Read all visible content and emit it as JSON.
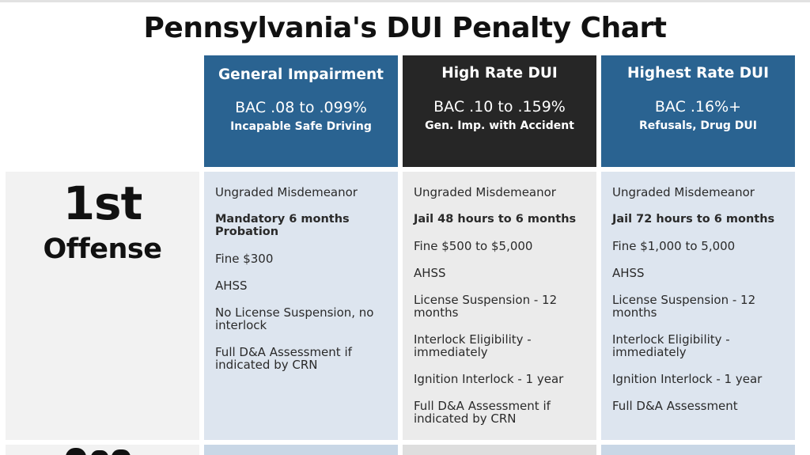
{
  "title": "Pennsylvania's DUI Penalty Chart",
  "columns": [
    {
      "name": "General Impairment",
      "bac": "BAC .08 to .099%",
      "sub": "Incapable Safe Driving",
      "header_color": "#2a6391",
      "body_color": "#dde5ef"
    },
    {
      "name": "High Rate DUI",
      "bac": "BAC .10 to .159%",
      "sub": "Gen. Imp. with Accident",
      "header_color": "#262626",
      "body_color": "#ebebeb"
    },
    {
      "name": "Highest Rate DUI",
      "bac": "BAC .16%+",
      "sub": "Refusals, Drug DUI",
      "header_color": "#2a6391",
      "body_color": "#dde5ef"
    }
  ],
  "rows": [
    {
      "offense_num": "1st",
      "offense_word": "Offense",
      "cells": [
        [
          "Ungraded Misdemeanor",
          "Mandatory 6 months Probation",
          "Fine $300",
          "AHSS",
          "No License Suspension, no interlock",
          "Full D&A Assessment if indicated by CRN"
        ],
        [
          "Ungraded Misdemeanor",
          "Jail 48 hours to 6 months",
          "Fine $500 to $5,000",
          "AHSS",
          "License Suspension - 12 months",
          "Interlock Eligibility - immediately",
          "Ignition Interlock - 1 year",
          "Full D&A Assessment if indicated by CRN"
        ],
        [
          "Ungraded Misdemeanor",
          "Jail 72 hours to 6 months",
          "Fine $1,000 to 5,000",
          "AHSS",
          "License Suspension - 12 months",
          "Interlock Eligibility - immediately",
          "Ignition Interlock - 1 year",
          "Full D&A Assessment"
        ]
      ]
    }
  ]
}
